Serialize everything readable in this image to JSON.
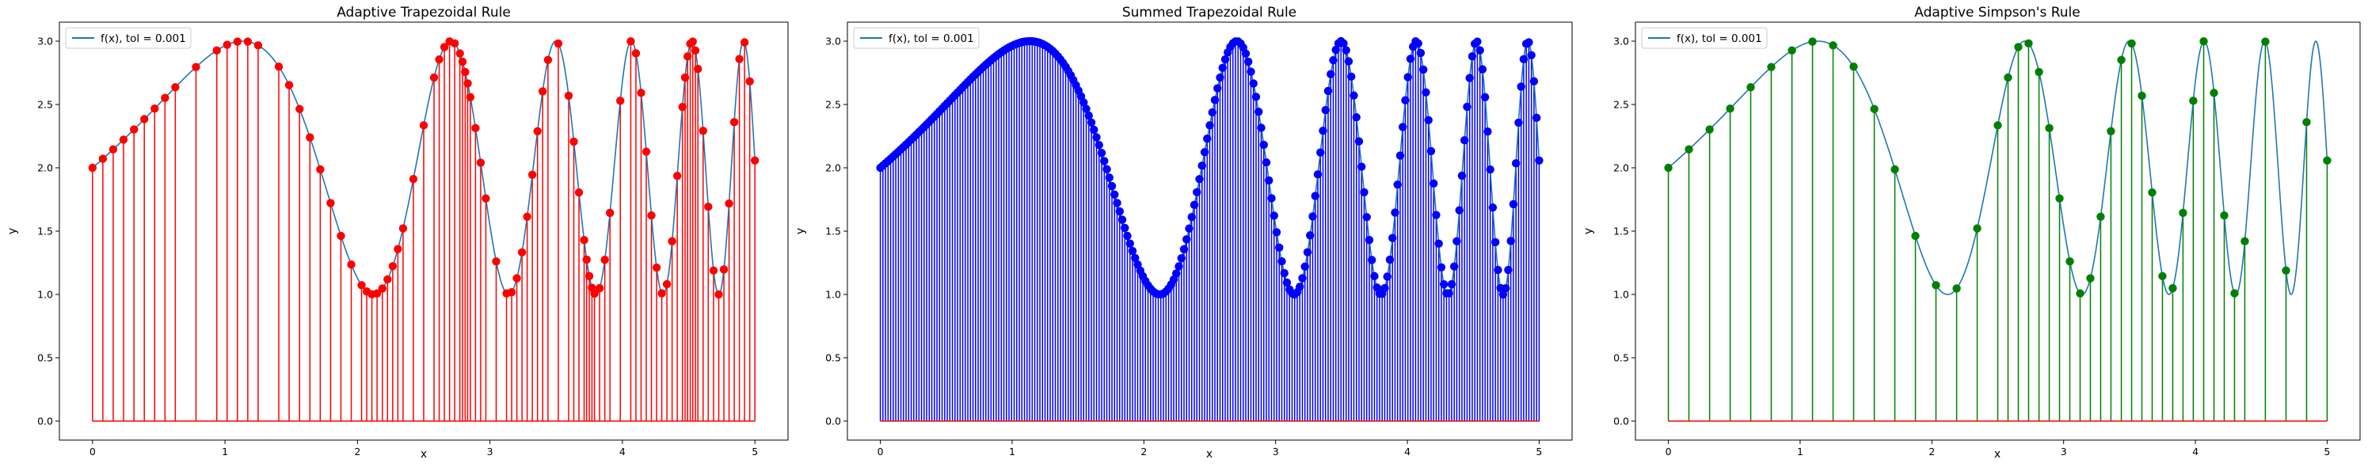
{
  "figure": {
    "background": "#ffffff",
    "axes_color": "#000000",
    "function_color": "#1f77b4",
    "baseline_color": "#ff0000"
  },
  "chart_data": [
    {
      "type": "stem",
      "title": "Adaptive Trapezoidal Rule",
      "xlabel": "x",
      "ylabel": "y",
      "xlim": [
        -0.25,
        5.25
      ],
      "ylim": [
        -0.15,
        3.15
      ],
      "xticks": [
        "0",
        "1",
        "2",
        "3",
        "4",
        "5"
      ],
      "yticks": [
        "0.0",
        "0.5",
        "1.0",
        "1.5",
        "2.0",
        "2.5",
        "3.0"
      ],
      "legend": {
        "label": "f(x), tol = 0.001",
        "position": "upper left"
      },
      "stem_color": "#ff0000",
      "marker_color": "#ff0000",
      "sample_points": "adaptive",
      "points_x": [
        0,
        0.078,
        0.156,
        0.234,
        0.313,
        0.391,
        0.469,
        0.547,
        0.625,
        0.781,
        0.938,
        1.016,
        1.094,
        1.172,
        1.25,
        1.406,
        1.484,
        1.563,
        1.641,
        1.719,
        1.797,
        1.875,
        1.953,
        2.031,
        2.07,
        2.109,
        2.148,
        2.188,
        2.227,
        2.266,
        2.305,
        2.344,
        2.422,
        2.5,
        2.578,
        2.617,
        2.656,
        2.695,
        2.734,
        2.773,
        2.793,
        2.813,
        2.832,
        2.852,
        2.891,
        2.93,
        2.969,
        3.047,
        3.125,
        3.164,
        3.203,
        3.242,
        3.281,
        3.32,
        3.359,
        3.398,
        3.438,
        3.516,
        3.594,
        3.633,
        3.672,
        3.711,
        3.73,
        3.75,
        3.77,
        3.789,
        3.828,
        3.867,
        3.906,
        3.984,
        4.063,
        4.102,
        4.141,
        4.18,
        4.219,
        4.258,
        4.297,
        4.336,
        4.375,
        4.414,
        4.453,
        4.473,
        4.492,
        4.512,
        4.531,
        4.551,
        4.57,
        4.609,
        4.648,
        4.688,
        4.727,
        4.766,
        4.805,
        4.844,
        4.883,
        4.922,
        4.961,
        5.0
      ]
    },
    {
      "type": "stem",
      "title": "Summed Trapezoidal Rule",
      "xlabel": "x",
      "ylabel": "y",
      "xlim": [
        -0.25,
        5.25
      ],
      "ylim": [
        -0.15,
        3.15
      ],
      "xticks": [
        "0",
        "1",
        "2",
        "3",
        "4",
        "5"
      ],
      "yticks": [
        "0.0",
        "0.5",
        "1.0",
        "1.5",
        "2.0",
        "2.5",
        "3.0"
      ],
      "legend": {
        "label": "f(x), tol = 0.001",
        "position": "upper left"
      },
      "stem_color": "#0000ff",
      "marker_color": "#0000ff",
      "sample_points": "uniform",
      "uniform_n": 256
    },
    {
      "type": "stem",
      "title": "Adaptive Simpson's Rule",
      "xlabel": "x",
      "ylabel": "y",
      "xlim": [
        -0.25,
        5.25
      ],
      "ylim": [
        -0.15,
        3.15
      ],
      "xticks": [
        "0",
        "1",
        "2",
        "3",
        "4",
        "5"
      ],
      "yticks": [
        "0.0",
        "0.5",
        "1.0",
        "1.5",
        "2.0",
        "2.5",
        "3.0"
      ],
      "legend": {
        "label": "f(x), tol = 0.001",
        "position": "upper left"
      },
      "stem_color": "#008000",
      "marker_color": "#008000",
      "sample_points": "adaptive",
      "points_x": [
        0,
        0.156,
        0.313,
        0.469,
        0.625,
        0.781,
        0.938,
        1.094,
        1.25,
        1.406,
        1.563,
        1.719,
        1.875,
        2.031,
        2.188,
        2.344,
        2.5,
        2.578,
        2.656,
        2.734,
        2.813,
        2.891,
        2.969,
        3.047,
        3.125,
        3.203,
        3.281,
        3.359,
        3.438,
        3.516,
        3.594,
        3.672,
        3.75,
        3.828,
        3.906,
        3.984,
        4.063,
        4.141,
        4.219,
        4.297,
        4.375,
        4.531,
        4.688,
        4.844,
        5.0
      ]
    }
  ]
}
